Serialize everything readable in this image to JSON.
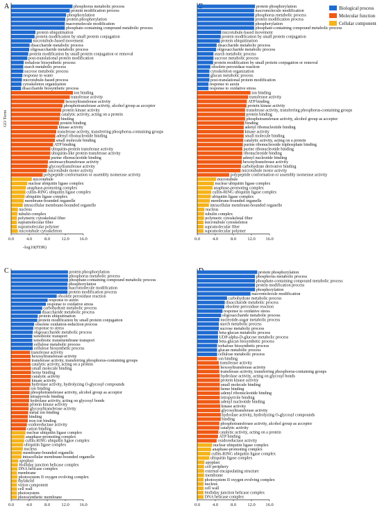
{
  "colors": {
    "Biological process": "#1f6bd1",
    "Molecular function": "#f05a14",
    "Cellular component": "#f5b31a"
  },
  "chart_data": [
    {
      "panel": "A",
      "type": "bar",
      "orientation": "horizontal",
      "xlabel": "-log10(FDR)",
      "ylabel": "GO Term",
      "xlim": [
        0,
        16
      ],
      "xticks": [
        "0.0",
        "4.0",
        "8.0",
        "12.0",
        "16.0"
      ],
      "series": [
        {
          "name": "Biological process",
          "categories": [
            "phosphorus metabolic process",
            "protein modification process",
            "phosphorylation",
            "protein phosphorylation",
            "macromolecule modification",
            "phosphate-containing compound metabolic process",
            "protein ubiquitination",
            "protein modification by small protein conjugation",
            "microtubule-based movement",
            "disaccharide metabolic process",
            "oligosaccharide metabolic process",
            "protein modification by small protein conjugation or removal",
            "post-translational protein modification",
            "trehalose biosynthetic process",
            "starch metabolic process",
            "sucrose metabolic process",
            "response to water",
            "microtubule-based process",
            "cytoskeleton organization",
            "disaccharide biosynthetic process"
          ],
          "values": [
            13.6,
            13.0,
            12.2,
            12.0,
            11.9,
            11.9,
            5.4,
            5.2,
            4.6,
            4.1,
            4.0,
            3.8,
            3.6,
            2.8,
            2.7,
            2.7,
            2.5,
            2.4,
            2.3,
            2.2
          ]
        },
        {
          "name": "Molecular function",
          "categories": [
            "ion binding",
            "transferase activity",
            "hexosyltransferase activity",
            "phosphotransferase activity, alcohol group as acceptor",
            "protein kinase activity",
            "catalytic activity, acting on a protein",
            "binding",
            "protein binding",
            "kinase activity",
            "transferase activity, transferring phosphorus-containing groups",
            "adenyl ribonucleotide binding",
            "small molecule binding",
            "ATP binding",
            "ubiquitin-protein transferase activity",
            "ubiquitin-like protein transferase activity",
            "purine ribonucleotide binding",
            "aminoacyltransferase activity",
            "glycosyltransferase activity",
            "microtubule motor activity",
            "polypeptide conformation or assembly isomerase activity"
          ],
          "values": [
            13.7,
            13.0,
            11.8,
            11.4,
            11.1,
            10.9,
            10.8,
            10.6,
            10.3,
            10.0,
            9.8,
            9.7,
            9.3,
            8.7,
            8.7,
            8.6,
            8.2,
            8.1,
            7.9,
            7.0
          ]
        },
        {
          "name": "Cellular component",
          "categories": [
            "microtubule",
            "nuclear ubiquitin ligase complex",
            "anaphase-promoting complex",
            "cullin-RING ubiquitin ligase complex",
            "ubiquitin ligase complex",
            "membrane-bounded organelle",
            "intracellular membrane-bounded organelle",
            "nucleus",
            "tubulin complex",
            "polymeric cytoskeletal fiber",
            "supramolecular fiber",
            "supramolecular polymer",
            "microtubule cytoskeleton"
          ],
          "values": [
            4.6,
            3.6,
            3.3,
            3.2,
            3.0,
            2.8,
            2.6,
            1.5,
            1.4,
            1.3,
            1.3,
            1.3,
            1.5
          ]
        }
      ]
    },
    {
      "panel": "B",
      "type": "bar",
      "orientation": "horizontal",
      "xlabel": "",
      "ylabel": "",
      "xlim": [
        0,
        16
      ],
      "xticks": [
        "0.0",
        "4.0",
        "8.0",
        "12.0",
        "16.0"
      ],
      "legend": "top-right",
      "series": [
        {
          "name": "Biological process",
          "categories": [
            "protein phosphorylation",
            "macromolecule modification",
            "phosphorus metabolic process",
            "protein modification process",
            "phosphorylation",
            "phosphate-containing compound metabolic process",
            "microtubule-based movement",
            "protein modification by small protein conjugation",
            "protein ubiquitination",
            "disaccharide metabolic process",
            "oligosaccharide metabolic process",
            "starch metabolic process",
            "sucrose metabolic process",
            "protein modification by small protein conjugation or removal",
            "obsolete peroxidase reaction",
            "cytoskeleton organization",
            "glucan metabolic process",
            "post-translational protein modification",
            "response to auxin",
            "response to oxidative stress"
          ],
          "values": [
            12.8,
            12.6,
            12.6,
            12.6,
            12.6,
            12.6,
            5.3,
            5.2,
            5.0,
            4.3,
            4.2,
            3.6,
            3.6,
            3.5,
            2.9,
            2.7,
            2.7,
            2.7,
            2.5,
            2.5
          ]
        },
        {
          "name": "Molecular function",
          "categories": [
            "ion binding",
            "transferase activity",
            "ATP binding",
            "protein kinase activity",
            "transferase activity, transferring phosphorus-containing groups",
            "protein binding",
            "phosphotransferase activity, alcohol group as acceptor",
            "binding",
            "adenyl ribonucleotide binding",
            "kinase activity",
            "small molecule binding",
            "catalytic activity, acting on a protein",
            "purine ribonucleoside triphosphate binding",
            "purine ribonucleotide binding",
            "ribonucleotide binding",
            "adenyl nucleotide binding",
            "hexosyltransferase activity",
            "carbohydrate derivative binding",
            "microtubule motor activity",
            "polypeptide conformation or assembly isomerase activity"
          ],
          "values": [
            11.8,
            11.3,
            11.0,
            10.9,
            10.6,
            10.6,
            10.6,
            10.4,
            10.3,
            10.3,
            10.3,
            10.2,
            10.1,
            10.0,
            10.0,
            9.9,
            9.9,
            9.7,
            9.6,
            7.1
          ]
        },
        {
          "name": "Cellular component",
          "categories": [
            "microtubule",
            "nuclear ubiquitin ligase complex",
            "anaphase-promoting complex",
            "cullin-RING ubiquitin ligase complex",
            "ubiquitin ligase complex",
            "membrane-bounded organelle",
            "intracellular membrane-bounded organelle",
            "nucleus",
            "tubulin complex",
            "polymeric cytoskeletal fiber",
            "microtubule cytoskeleton",
            "supramolecular fiber",
            "supramolecular polymer"
          ],
          "values": [
            4.2,
            3.7,
            3.4,
            3.1,
            3.0,
            2.8,
            2.6,
            1.6,
            1.5,
            1.5,
            1.4,
            1.4,
            1.4
          ]
        }
      ]
    },
    {
      "panel": "C",
      "type": "bar",
      "orientation": "horizontal",
      "xlabel": "",
      "ylabel": "",
      "xlim": [
        0,
        16
      ],
      "xticks": [
        "0.0",
        "4.0",
        "8.0",
        "12.0",
        "16.0"
      ],
      "series": [
        {
          "name": "Biological process",
          "categories": [
            "protein phosphorylation",
            "phosphorus metabolic process",
            "phosphate-containing compound metabolic process",
            "phosphorylation",
            "macromolecule modification",
            "protein modification process",
            "obsolete peroxidase reaction",
            "response to auxin",
            "response to oxidative stress",
            "carbohydrate metabolic process",
            "disaccharide metabolic process",
            "protein ubiquitination",
            "protein modification by small protein conjugation",
            "obsolete oxidation-reduction process",
            "response to stress",
            "oligosaccharide metabolic process",
            "xenobiotic transport",
            "xenobiotic transmembrane transport",
            "cellulose metabolic process",
            "cellulose biosynthetic process"
          ],
          "values": [
            12.6,
            12.6,
            12.6,
            12.5,
            12.5,
            12.5,
            10.1,
            8.1,
            7.7,
            6.9,
            6.6,
            5.9,
            5.8,
            5.1,
            4.9,
            4.8,
            4.7,
            4.7,
            4.8,
            4.8
          ]
        },
        {
          "name": "Molecular function",
          "categories": [
            "transferase activity",
            "hexosyltransferase activity",
            "transferase activity, transferring phosphorus-containing groups",
            "catalytic activity, acting on a protein",
            "small molecule binding",
            "heme binding",
            "catalytic activity",
            "kinase activity",
            "hydrolase activity, hydrolyzing O-glycosyl compounds",
            "ion binding",
            "phosphotransferase activity, alcohol group as acceptor",
            "tetrapyrrole binding",
            "hydrolase activity, acting on glycosyl bonds",
            "protein kinase activity",
            "glycosyltransferase activity",
            "metal ion binding",
            "binding",
            "iron ion binding",
            "oxidoreductase activity",
            "cation binding"
          ],
          "values": [
            4.2,
            4.3,
            4.3,
            4.3,
            4.4,
            4.4,
            4.4,
            4.3,
            4.3,
            4.1,
            4.1,
            4.0,
            4.0,
            3.9,
            3.9,
            3.8,
            3.7,
            3.7,
            3.5,
            3.3
          ]
        },
        {
          "name": "Cellular component",
          "categories": [
            "nuclear ubiquitin ligase complex",
            "anaphase-promoting complex",
            "cullin-RING ubiquitin ligase complex",
            "ubiquitin ligase complex",
            "nucleus",
            "membrane-bounded organelle",
            "intracellular membrane-bounded organelle",
            "apoplast",
            "Holliday junction helicase complex",
            "DNA helicase complex",
            "membrane",
            "photosystem II oxygen evolving complex",
            "thylakoid",
            "virion component",
            "cell wall",
            "photosystem",
            "photosynthetic membrane"
          ],
          "values": [
            3.2,
            3.0,
            2.9,
            2.7,
            2.6,
            2.4,
            2.3,
            1.6,
            1.5,
            1.4,
            1.3,
            1.4,
            1.3,
            1.3,
            1.3,
            1.3,
            1.3
          ]
        }
      ]
    },
    {
      "panel": "D",
      "type": "bar",
      "orientation": "horizontal",
      "xlabel": "",
      "ylabel": "",
      "xlim": [
        0,
        16
      ],
      "xticks": [
        "0.0",
        "4.0",
        "8.0",
        "12.0",
        "16.0"
      ],
      "series": [
        {
          "name": "Biological process",
          "categories": [
            "protein phosphorylation",
            "phosphorus metabolic process",
            "phosphate-containing compound metabolic process",
            "protein modification process",
            "phosphorylation",
            "macromolecule modification",
            "carbohydrate metabolic process",
            "disaccharide metabolic process",
            "obsolete peroxidase reaction",
            "response to oxidative stress",
            "oligosaccharide metabolic process",
            "nucleotide-sugar metabolic process",
            "starch metabolic process",
            "sucrose metabolic process",
            "beta-glucan metabolic process",
            "UDP-alpha-D-glucose metabolic process",
            "beta-glucan biosynthetic process",
            "trehalose biosynthetic process",
            "glucan metabolic process",
            "cellulose metabolic process"
          ],
          "values": [
            13.3,
            12.8,
            12.8,
            12.8,
            12.8,
            11.8,
            6.6,
            6.1,
            6.0,
            5.6,
            5.3,
            4.9,
            4.8,
            4.8,
            4.6,
            4.6,
            4.6,
            4.4,
            4.4,
            4.4
          ]
        },
        {
          "name": "Molecular function",
          "categories": [
            "ion binding",
            "transferase activity",
            "hexosyltransferase activity",
            "transferase activity, transferring phosphorus-containing groups",
            "hydrolase activity, acting on glycosyl bonds",
            "protein kinase activity",
            "small molecule binding",
            "heme binding",
            "adenyl ribonucleotide binding",
            "tetrapyrrole binding",
            "adenyl nucleotide binding",
            "kinase activity",
            "glycosyltransferase activity",
            "hydrolase activity, hydrolyzing O-glycosyl compounds",
            "binding",
            "phosphotransferase activity, alcohol group as acceptor",
            "catalytic activity",
            "catalytic activity, acting on a protein",
            "ATP binding",
            "oxidoreductase activity"
          ],
          "values": [
            4.4,
            4.8,
            4.9,
            4.9,
            5.0,
            5.0,
            5.0,
            5.0,
            5.0,
            5.0,
            5.0,
            5.1,
            5.1,
            5.2,
            5.2,
            4.9,
            4.9,
            4.7,
            4.6,
            4.3
          ]
        },
        {
          "name": "Cellular component",
          "categories": [
            "nuclear ubiquitin ligase complex",
            "anaphase-promoting complex",
            "cullin-RING ubiquitin ligase complex",
            "ubiquitin ligase complex",
            "apoplast",
            "cell periphery",
            "external encapsulating structure",
            "membrane",
            "photosystem II oxygen evolving complex",
            "nucleus",
            "cell wall",
            "Holliday junction helicase complex",
            "DNA helicase complex"
          ],
          "values": [
            3.3,
            3.1,
            2.9,
            2.7,
            1.6,
            1.5,
            1.5,
            1.5,
            1.4,
            1.4,
            1.4,
            1.4,
            1.4
          ]
        }
      ]
    }
  ]
}
